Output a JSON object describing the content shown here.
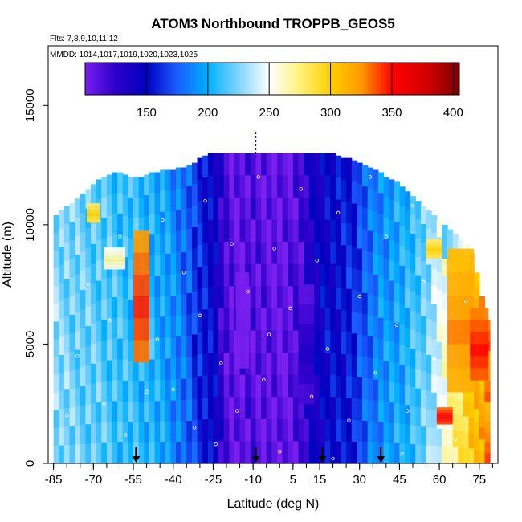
{
  "chart_data": {
    "type": "heatmap",
    "title": "ATOM3 Northbound TROPPB_GEOS5",
    "subtitle_flights": "Flts: 7,8,9,10,11,12",
    "subtitle_dates": "MMDD: 1014,1017,1019,1020,1023,1025",
    "xlabel": "Latitude (deg N)",
    "ylabel": "Altitude (m)",
    "xlim": [
      -87,
      82
    ],
    "ylim": [
      0,
      17500
    ],
    "x_ticks": [
      -85,
      -70,
      -55,
      -40,
      -25,
      -10,
      5,
      15,
      30,
      45,
      60,
      75
    ],
    "x_tick_labels": [
      "-85",
      "-70",
      "-55",
      "-40",
      "-25",
      "-10",
      "5",
      "15",
      "30",
      "45",
      "60",
      "75"
    ],
    "y_ticks": [
      0,
      5000,
      10000,
      15000
    ],
    "y_tick_labels": [
      "0",
      "5000",
      "10000",
      "15000"
    ],
    "colorbar": {
      "min": 100,
      "max": 405,
      "ticks": [
        150,
        200,
        250,
        300,
        350,
        400
      ],
      "tick_labels": [
        "150",
        "200",
        "250",
        "300",
        "350",
        "400"
      ],
      "stops": [
        {
          "v": 100,
          "c": "#7a1ff0"
        },
        {
          "v": 125,
          "c": "#2a00c8"
        },
        {
          "v": 150,
          "c": "#0000c0"
        },
        {
          "v": 175,
          "c": "#1a5cff"
        },
        {
          "v": 200,
          "c": "#00b0ff"
        },
        {
          "v": 225,
          "c": "#7fd4ff"
        },
        {
          "v": 250,
          "c": "#ffffff"
        },
        {
          "v": 275,
          "c": "#fff27a"
        },
        {
          "v": 300,
          "c": "#ffd000"
        },
        {
          "v": 325,
          "c": "#ff9a00"
        },
        {
          "v": 350,
          "c": "#ff0000"
        },
        {
          "v": 380,
          "c": "#d00000"
        },
        {
          "v": 405,
          "c": "#7a0000"
        }
      ]
    },
    "profiles": [
      {
        "lat": -84,
        "top": 10400,
        "v": 228
      },
      {
        "lat": -82,
        "top": 10600,
        "v": 225
      },
      {
        "lat": -80,
        "top": 10800,
        "v": 225
      },
      {
        "lat": -78,
        "top": 10900,
        "v": 222
      },
      {
        "lat": -76,
        "top": 11100,
        "v": 222
      },
      {
        "lat": -74,
        "top": 11300,
        "v": 220
      },
      {
        "lat": -72,
        "top": 11500,
        "v": 220
      },
      {
        "lat": -70,
        "top": 11700,
        "v": 218
      },
      {
        "lat": -68,
        "top": 11900,
        "v": 218
      },
      {
        "lat": -66,
        "top": 12000,
        "v": 215
      },
      {
        "lat": -64,
        "top": 12100,
        "v": 215
      },
      {
        "lat": -62,
        "top": 12200,
        "v": 212
      },
      {
        "lat": -60,
        "top": 12200,
        "v": 210
      },
      {
        "lat": -58,
        "top": 12100,
        "v": 210
      },
      {
        "lat": -56,
        "top": 12000,
        "v": 208
      },
      {
        "lat": -54,
        "top": 12000,
        "v": 208
      },
      {
        "lat": -52,
        "top": 12000,
        "v": 205
      },
      {
        "lat": -50,
        "top": 12100,
        "v": 205
      },
      {
        "lat": -48,
        "top": 12200,
        "v": 205
      },
      {
        "lat": -46,
        "top": 12200,
        "v": 200
      },
      {
        "lat": -44,
        "top": 12300,
        "v": 198
      },
      {
        "lat": -42,
        "top": 12300,
        "v": 195
      },
      {
        "lat": -40,
        "top": 12300,
        "v": 190
      },
      {
        "lat": -38,
        "top": 12400,
        "v": 185
      },
      {
        "lat": -36,
        "top": 12400,
        "v": 180
      },
      {
        "lat": -34,
        "top": 12500,
        "v": 175
      },
      {
        "lat": -32,
        "top": 12600,
        "v": 165
      },
      {
        "lat": -30,
        "top": 12800,
        "v": 160
      },
      {
        "lat": -28,
        "top": 12900,
        "v": 155
      },
      {
        "lat": -26,
        "top": 13000,
        "v": 150
      },
      {
        "lat": -24,
        "top": 13000,
        "v": 145
      },
      {
        "lat": -22,
        "top": 13000,
        "v": 125
      },
      {
        "lat": -20,
        "top": 13000,
        "v": 115
      },
      {
        "lat": -18,
        "top": 13000,
        "v": 110
      },
      {
        "lat": -16,
        "top": 13000,
        "v": 108
      },
      {
        "lat": -14,
        "top": 13000,
        "v": 110
      },
      {
        "lat": -12,
        "top": 13000,
        "v": 112
      },
      {
        "lat": -10,
        "top": 13000,
        "v": 112
      },
      {
        "lat": -8,
        "top": 13000,
        "v": 110
      },
      {
        "lat": -6,
        "top": 13000,
        "v": 110
      },
      {
        "lat": -4,
        "top": 13000,
        "v": 108
      },
      {
        "lat": -2,
        "top": 13000,
        "v": 108
      },
      {
        "lat": 0,
        "top": 13000,
        "v": 105
      },
      {
        "lat": 2,
        "top": 13000,
        "v": 108
      },
      {
        "lat": 4,
        "top": 13000,
        "v": 110
      },
      {
        "lat": 6,
        "top": 13000,
        "v": 115
      },
      {
        "lat": 8,
        "top": 13000,
        "v": 118
      },
      {
        "lat": 10,
        "top": 13000,
        "v": 125
      },
      {
        "lat": 12,
        "top": 13000,
        "v": 135
      },
      {
        "lat": 14,
        "top": 13000,
        "v": 140
      },
      {
        "lat": 16,
        "top": 13000,
        "v": 145
      },
      {
        "lat": 18,
        "top": 13000,
        "v": 150
      },
      {
        "lat": 20,
        "top": 13000,
        "v": 150
      },
      {
        "lat": 22,
        "top": 12900,
        "v": 152
      },
      {
        "lat": 24,
        "top": 12800,
        "v": 155
      },
      {
        "lat": 26,
        "top": 12800,
        "v": 158
      },
      {
        "lat": 28,
        "top": 12700,
        "v": 160
      },
      {
        "lat": 30,
        "top": 12600,
        "v": 170
      },
      {
        "lat": 32,
        "top": 12500,
        "v": 175
      },
      {
        "lat": 34,
        "top": 12400,
        "v": 180
      },
      {
        "lat": 36,
        "top": 12300,
        "v": 185
      },
      {
        "lat": 38,
        "top": 12200,
        "v": 190
      },
      {
        "lat": 40,
        "top": 12000,
        "v": 192
      },
      {
        "lat": 42,
        "top": 11900,
        "v": 195
      },
      {
        "lat": 44,
        "top": 11800,
        "v": 198
      },
      {
        "lat": 46,
        "top": 11600,
        "v": 200
      },
      {
        "lat": 48,
        "top": 11400,
        "v": 205
      },
      {
        "lat": 50,
        "top": 11200,
        "v": 210
      },
      {
        "lat": 52,
        "top": 11000,
        "v": 215
      },
      {
        "lat": 54,
        "top": 10800,
        "v": 220
      },
      {
        "lat": 56,
        "top": 10600,
        "v": 225
      },
      {
        "lat": 58,
        "top": 10400,
        "v": 235
      },
      {
        "lat": 60,
        "top": 10200,
        "v": 245
      },
      {
        "lat": 62,
        "top": 10000,
        "v": 255
      },
      {
        "lat": 64,
        "top": 9800,
        "v": 265
      },
      {
        "lat": 66,
        "top": 9600,
        "v": 275
      },
      {
        "lat": 68,
        "top": 9400,
        "v": 285
      },
      {
        "lat": 70,
        "top": 9200,
        "v": 295
      },
      {
        "lat": 72,
        "top": 8800,
        "v": 305
      },
      {
        "lat": 74,
        "top": 8000,
        "v": 310
      },
      {
        "lat": 76,
        "top": 7000,
        "v": 315
      },
      {
        "lat": 78,
        "top": 6000,
        "v": 325
      }
    ],
    "features": [
      {
        "lat": -52,
        "alt": 7000,
        "dlat": 6,
        "dalt": 5500,
        "v": 345
      },
      {
        "lat": -70,
        "alt": 10500,
        "dlat": 5,
        "dalt": 800,
        "v": 300
      },
      {
        "lat": -62,
        "alt": 8600,
        "dlat": 8,
        "dalt": 900,
        "v": 270
      },
      {
        "lat": 68,
        "alt": 6000,
        "dlat": 10,
        "dalt": 6000,
        "v": 330
      },
      {
        "lat": 75,
        "alt": 5000,
        "dlat": 7,
        "dalt": 3000,
        "v": 350
      },
      {
        "lat": 58,
        "alt": 9000,
        "dlat": 6,
        "dalt": 800,
        "v": 300
      },
      {
        "lat": 62,
        "alt": 2000,
        "dlat": 6,
        "dalt": 700,
        "v": 355
      },
      {
        "lat": 10,
        "alt": 5000,
        "dlat": 6,
        "dalt": 5000,
        "v": 130
      },
      {
        "lat": -14,
        "alt": 6000,
        "dlat": 5,
        "dalt": 4000,
        "v": 102
      }
    ],
    "sample_points": [
      [
        -80,
        2000
      ],
      [
        -76,
        4500
      ],
      [
        -72,
        7500
      ],
      [
        -66,
        2500
      ],
      [
        -60,
        9500
      ],
      [
        -58,
        1200
      ],
      [
        -46,
        5200
      ],
      [
        -44,
        10200
      ],
      [
        -40,
        3100
      ],
      [
        -36,
        8000
      ],
      [
        -32,
        1500
      ],
      [
        -30,
        6200
      ],
      [
        -28,
        11000
      ],
      [
        -22,
        4200
      ],
      [
        -18,
        9200
      ],
      [
        -16,
        2200
      ],
      [
        -12,
        7200
      ],
      [
        -8,
        12000
      ],
      [
        -6,
        3500
      ],
      [
        -2,
        9000
      ],
      [
        0,
        500
      ],
      [
        4,
        6500
      ],
      [
        8,
        11500
      ],
      [
        12,
        2800
      ],
      [
        14,
        8500
      ],
      [
        18,
        4800
      ],
      [
        22,
        10500
      ],
      [
        26,
        1800
      ],
      [
        30,
        7000
      ],
      [
        34,
        12000
      ],
      [
        36,
        3800
      ],
      [
        40,
        9500
      ],
      [
        44,
        5800
      ],
      [
        48,
        2200
      ],
      [
        50,
        10800
      ],
      [
        54,
        7600
      ],
      [
        58,
        4400
      ],
      [
        62,
        8200
      ],
      [
        66,
        1000
      ],
      [
        70,
        6800
      ],
      [
        -50,
        3000
      ],
      [
        -64,
        6000
      ],
      [
        -24,
        800
      ],
      [
        20,
        200
      ],
      [
        -4,
        5400
      ],
      [
        46,
        400
      ]
    ],
    "arrows_lat": [
      -54,
      -9,
      16,
      38
    ],
    "arrow_top_alt": 700,
    "dashed_marker": {
      "lat": -9,
      "alt_from": 12700,
      "alt_to": 13900
    }
  }
}
